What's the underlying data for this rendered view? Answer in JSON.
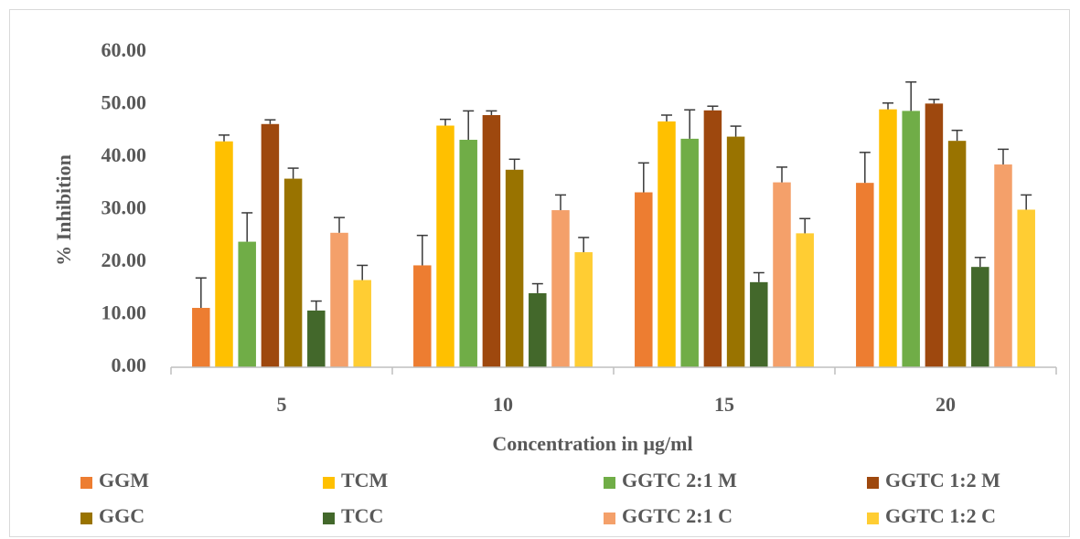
{
  "chart_data": {
    "type": "bar",
    "title": "",
    "xlabel": "Concentration in µg/ml",
    "ylabel": "% Inhibition",
    "categories": [
      "5",
      "10",
      "15",
      "20"
    ],
    "ylim": [
      0,
      60
    ],
    "yticks": [
      0,
      10,
      20,
      30,
      40,
      50,
      60
    ],
    "ytick_labels": [
      "0.00",
      "10.00",
      "20.00",
      "30.00",
      "40.00",
      "50.00",
      "60.00"
    ],
    "grid": false,
    "legend_position": "bottom",
    "series": [
      {
        "name": "GGM",
        "color": "#ED7D31",
        "values": [
          11.3,
          19.4,
          33.3,
          35.1
        ],
        "errors": [
          5.7,
          5.7,
          5.6,
          5.8
        ]
      },
      {
        "name": "TCM",
        "color": "#FFC000",
        "values": [
          43.0,
          46.0,
          46.8,
          49.1
        ],
        "errors": [
          1.2,
          1.2,
          1.2,
          1.2
        ]
      },
      {
        "name": "GGTC 2:1 M",
        "color": "#70AD47",
        "values": [
          23.9,
          43.3,
          43.5,
          48.8
        ],
        "errors": [
          5.5,
          5.5,
          5.5,
          5.5
        ]
      },
      {
        "name": "GGTC 1:2 M",
        "color": "#9E480E",
        "values": [
          46.3,
          48.0,
          48.9,
          50.2
        ],
        "errors": [
          0.8,
          0.8,
          0.8,
          0.8
        ]
      },
      {
        "name": "GGC",
        "color": "#997300",
        "values": [
          35.9,
          37.6,
          43.9,
          43.1
        ],
        "errors": [
          2.0,
          2.0,
          2.0,
          2.0
        ]
      },
      {
        "name": "TCC",
        "color": "#43682B",
        "values": [
          10.8,
          14.1,
          16.2,
          19.1
        ],
        "errors": [
          1.8,
          1.8,
          1.8,
          1.8
        ]
      },
      {
        "name": "GGTC 2:1 C",
        "color": "#F4A06A",
        "values": [
          25.6,
          29.9,
          35.2,
          38.6
        ],
        "errors": [
          2.9,
          2.9,
          2.9,
          2.9
        ]
      },
      {
        "name": "GGTC 1:2 C",
        "color": "#FFCD33",
        "values": [
          16.6,
          21.9,
          25.5,
          30.0
        ],
        "errors": [
          2.8,
          2.8,
          2.8,
          2.8
        ]
      }
    ]
  }
}
